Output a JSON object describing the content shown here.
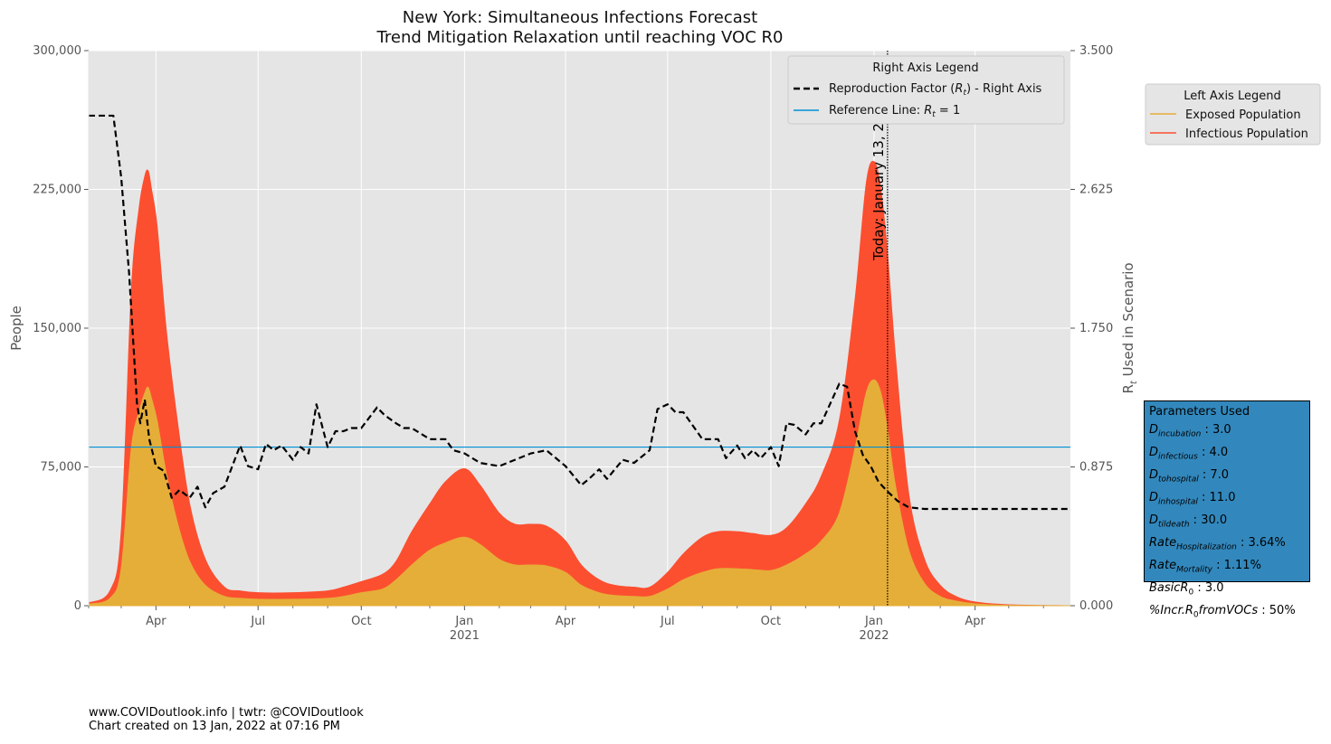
{
  "chart_data": {
    "type": "area",
    "title": [
      "New York: Simultaneous Infections Forecast",
      "Trend Mitigation Relaxation until reaching VOC R0"
    ],
    "xlabel": "",
    "ylabel_left": "People",
    "ylabel_right": "R_t Used in Scenario",
    "xlim": [
      "2020-02-01",
      "2022-06-25"
    ],
    "ylim_left": [
      0,
      300000
    ],
    "ylim_right": [
      0,
      3.5
    ],
    "y_ticks_left": [
      "0",
      "75,000",
      "150,000",
      "225,000",
      "300,000"
    ],
    "y_tick_values_left": [
      0,
      75000,
      150000,
      225000,
      300000
    ],
    "y_ticks_right": [
      "0.000",
      "0.875",
      "1.750",
      "2.625",
      "3.500"
    ],
    "y_tick_values_right": [
      0,
      0.875,
      1.75,
      2.625,
      3.5
    ],
    "x_ticks": [
      {
        "date": "2020-04-01",
        "label": "Apr",
        "year": ""
      },
      {
        "date": "2020-07-01",
        "label": "Jul",
        "year": ""
      },
      {
        "date": "2020-10-01",
        "label": "Oct",
        "year": ""
      },
      {
        "date": "2021-01-01",
        "label": "Jan",
        "year": "2021"
      },
      {
        "date": "2021-04-01",
        "label": "Apr",
        "year": ""
      },
      {
        "date": "2021-07-01",
        "label": "Jul",
        "year": ""
      },
      {
        "date": "2021-10-01",
        "label": "Oct",
        "year": ""
      },
      {
        "date": "2022-01-01",
        "label": "Jan",
        "year": "2022"
      },
      {
        "date": "2022-04-01",
        "label": "Apr",
        "year": ""
      }
    ],
    "grid": true,
    "today_marker": {
      "date": "2022-01-13",
      "label": "Today: January 13, 2022"
    },
    "reference_line_right_value": 1.0,
    "series": [
      {
        "name": "Infectious Population",
        "axis": "left",
        "color": "#fc4f30",
        "stacked_on": "Exposed Population",
        "x": [
          "2020-02-01",
          "2020-02-20",
          "2020-03-01",
          "2020-03-10",
          "2020-03-17",
          "2020-03-22",
          "2020-03-25",
          "2020-03-28",
          "2020-04-02",
          "2020-04-10",
          "2020-04-20",
          "2020-05-01",
          "2020-05-15",
          "2020-06-01",
          "2020-06-15",
          "2020-07-01",
          "2020-08-01",
          "2020-09-01",
          "2020-09-15",
          "2020-10-01",
          "2020-10-20",
          "2020-11-01",
          "2020-11-15",
          "2020-12-01",
          "2020-12-15",
          "2021-01-01",
          "2021-01-15",
          "2021-02-01",
          "2021-02-15",
          "2021-03-01",
          "2021-03-15",
          "2021-04-01",
          "2021-04-15",
          "2021-05-01",
          "2021-05-15",
          "2021-06-01",
          "2021-06-15",
          "2021-07-01",
          "2021-07-15",
          "2021-08-01",
          "2021-08-15",
          "2021-09-01",
          "2021-09-15",
          "2021-10-01",
          "2021-10-15",
          "2021-11-01",
          "2021-11-15",
          "2021-12-01",
          "2021-12-15",
          "2021-12-25",
          "2022-01-01",
          "2022-01-07",
          "2022-01-13",
          "2022-01-20",
          "2022-02-01",
          "2022-02-15",
          "2022-03-01",
          "2022-03-15",
          "2022-04-01",
          "2022-05-01",
          "2022-06-25"
        ],
        "values": [
          1500,
          8000,
          40000,
          170000,
          215000,
          232000,
          235000,
          225000,
          205000,
          150000,
          100000,
          55000,
          25000,
          10000,
          8000,
          7000,
          7000,
          8000,
          10000,
          13000,
          17000,
          24000,
          40000,
          55000,
          67000,
          74000,
          65000,
          50000,
          44000,
          44000,
          43000,
          35000,
          22000,
          14000,
          11000,
          10000,
          10000,
          18000,
          28000,
          37000,
          40000,
          40000,
          39000,
          38000,
          42000,
          55000,
          70000,
          100000,
          165000,
          228000,
          240000,
          225000,
          190000,
          135000,
          60000,
          25000,
          11000,
          5000,
          2000,
          500,
          0
        ]
      },
      {
        "name": "Exposed Population",
        "axis": "left",
        "color": "#e5ae38",
        "x": [
          "2020-02-01",
          "2020-02-20",
          "2020-03-01",
          "2020-03-10",
          "2020-03-17",
          "2020-03-22",
          "2020-03-25",
          "2020-03-28",
          "2020-04-02",
          "2020-04-10",
          "2020-04-20",
          "2020-05-01",
          "2020-05-15",
          "2020-06-01",
          "2020-06-15",
          "2020-07-01",
          "2020-08-01",
          "2020-09-01",
          "2020-09-15",
          "2020-10-01",
          "2020-10-20",
          "2020-11-01",
          "2020-11-15",
          "2020-12-01",
          "2020-12-15",
          "2021-01-01",
          "2021-01-15",
          "2021-02-01",
          "2021-02-15",
          "2021-03-01",
          "2021-03-15",
          "2021-04-01",
          "2021-04-15",
          "2021-05-01",
          "2021-05-15",
          "2021-06-01",
          "2021-06-15",
          "2021-07-01",
          "2021-07-15",
          "2021-08-01",
          "2021-08-15",
          "2021-09-01",
          "2021-09-15",
          "2021-10-01",
          "2021-10-15",
          "2021-11-01",
          "2021-11-15",
          "2021-12-01",
          "2021-12-15",
          "2021-12-25",
          "2022-01-01",
          "2022-01-07",
          "2022-01-13",
          "2022-01-20",
          "2022-02-01",
          "2022-02-15",
          "2022-03-01",
          "2022-03-15",
          "2022-04-01",
          "2022-05-01",
          "2022-06-25"
        ],
        "values": [
          800,
          4000,
          20000,
          85000,
          105000,
          115000,
          118000,
          112000,
          100000,
          72000,
          45000,
          24000,
          11000,
          5000,
          4000,
          3500,
          3500,
          4000,
          5000,
          7000,
          9000,
          14000,
          22000,
          30000,
          34000,
          37000,
          33000,
          25000,
          22000,
          22000,
          21500,
          18000,
          11000,
          7000,
          5500,
          5000,
          5000,
          9000,
          14000,
          18000,
          20000,
          20000,
          19500,
          19000,
          22000,
          28000,
          35000,
          50000,
          85000,
          115000,
          122000,
          115000,
          95000,
          65000,
          30000,
          12000,
          5000,
          2500,
          1000,
          200,
          0
        ]
      },
      {
        "name": "Reproduction Factor (R_t) - Right Axis",
        "axis": "right",
        "color": "#000000",
        "style": "dashed",
        "x": [
          "2020-02-01",
          "2020-02-23",
          "2020-03-01",
          "2020-03-08",
          "2020-03-15",
          "2020-03-18",
          "2020-03-22",
          "2020-03-26",
          "2020-04-01",
          "2020-04-08",
          "2020-04-15",
          "2020-04-22",
          "2020-05-01",
          "2020-05-08",
          "2020-05-15",
          "2020-05-22",
          "2020-06-01",
          "2020-06-08",
          "2020-06-15",
          "2020-06-22",
          "2020-07-01",
          "2020-07-08",
          "2020-07-15",
          "2020-07-22",
          "2020-08-01",
          "2020-08-08",
          "2020-08-15",
          "2020-08-22",
          "2020-09-01",
          "2020-09-08",
          "2020-09-15",
          "2020-09-22",
          "2020-10-01",
          "2020-10-15",
          "2020-10-22",
          "2020-11-01",
          "2020-11-08",
          "2020-11-15",
          "2020-12-01",
          "2020-12-15",
          "2020-12-22",
          "2021-01-01",
          "2021-01-15",
          "2021-02-01",
          "2021-02-15",
          "2021-03-01",
          "2021-03-15",
          "2021-04-01",
          "2021-04-15",
          "2021-04-22",
          "2021-05-01",
          "2021-05-08",
          "2021-05-15",
          "2021-05-22",
          "2021-06-01",
          "2021-06-15",
          "2021-06-22",
          "2021-07-01",
          "2021-07-08",
          "2021-07-15",
          "2021-08-01",
          "2021-08-15",
          "2021-08-22",
          "2021-09-01",
          "2021-09-08",
          "2021-09-15",
          "2021-09-22",
          "2021-10-01",
          "2021-10-08",
          "2021-10-15",
          "2021-10-22",
          "2021-11-01",
          "2021-11-08",
          "2021-11-15",
          "2021-12-01",
          "2021-12-08",
          "2021-12-15",
          "2021-12-22",
          "2021-12-29",
          "2022-01-05",
          "2022-01-13",
          "2022-01-22",
          "2022-02-01",
          "2022-02-15",
          "2022-03-01",
          "2022-04-01",
          "2022-05-01",
          "2022-06-25"
        ],
        "values": [
          3.09,
          3.09,
          2.7,
          2.1,
          1.28,
          1.15,
          1.3,
          1.05,
          0.88,
          0.85,
          0.68,
          0.73,
          0.68,
          0.75,
          0.62,
          0.71,
          0.75,
          0.88,
          1.01,
          0.88,
          0.86,
          1.02,
          0.98,
          1.01,
          0.92,
          1.0,
          0.96,
          1.27,
          1.0,
          1.1,
          1.1,
          1.12,
          1.12,
          1.25,
          1.2,
          1.15,
          1.12,
          1.12,
          1.05,
          1.05,
          0.98,
          0.96,
          0.9,
          0.88,
          0.92,
          0.96,
          0.98,
          0.88,
          0.76,
          0.8,
          0.86,
          0.8,
          0.86,
          0.92,
          0.9,
          0.98,
          1.24,
          1.27,
          1.22,
          1.22,
          1.05,
          1.05,
          0.93,
          1.01,
          0.93,
          0.98,
          0.93,
          1.0,
          0.88,
          1.15,
          1.14,
          1.08,
          1.15,
          1.15,
          1.4,
          1.38,
          1.1,
          0.95,
          0.88,
          0.78,
          0.72,
          0.66,
          0.62,
          0.61,
          0.61,
          0.61,
          0.61,
          0.61
        ]
      }
    ],
    "legend_left": {
      "title": "Left Axis Legend",
      "placement": "outside-right-top",
      "entries": [
        {
          "label": "Exposed Population",
          "color": "#e5ae38"
        },
        {
          "label": "Infectious Population",
          "color": "#fc4f30"
        }
      ]
    },
    "legend_right": {
      "title": "Right Axis Legend",
      "placement": "top-right",
      "entries": [
        {
          "label": "Reproduction Factor (Rt) - Right Axis",
          "color": "#000000",
          "style": "dashed"
        },
        {
          "label": "Reference Line: Rt = 1",
          "color": "#008fd5",
          "style": "solid"
        }
      ]
    }
  },
  "parameters": {
    "title": "Parameters Used",
    "items": [
      "D_incubation: 3.0",
      "D_infectious: 4.0",
      "D_tohospital: 7.0",
      "D_inhospital: 11.0",
      "D_tildeath: 30.0",
      "Rate_Hospitalization: 3.64%",
      "Rate_Mortality: 1.11%",
      "Basic R0: 3.0",
      "%Incr. R0 from VOCs: 50%"
    ]
  },
  "footer": {
    "line1": "www.COVIDoutlook.info | twtr: @COVIDoutlook",
    "line2": "Chart created on 13 Jan, 2022 at 07:16 PM"
  },
  "colors": {
    "plot_background": "#e5e5e5",
    "grid": "#ffffff",
    "infectious": "#fc4f30",
    "exposed": "#e5ae38",
    "reference_line": "#008fd5",
    "params_box": "#3288bd"
  }
}
